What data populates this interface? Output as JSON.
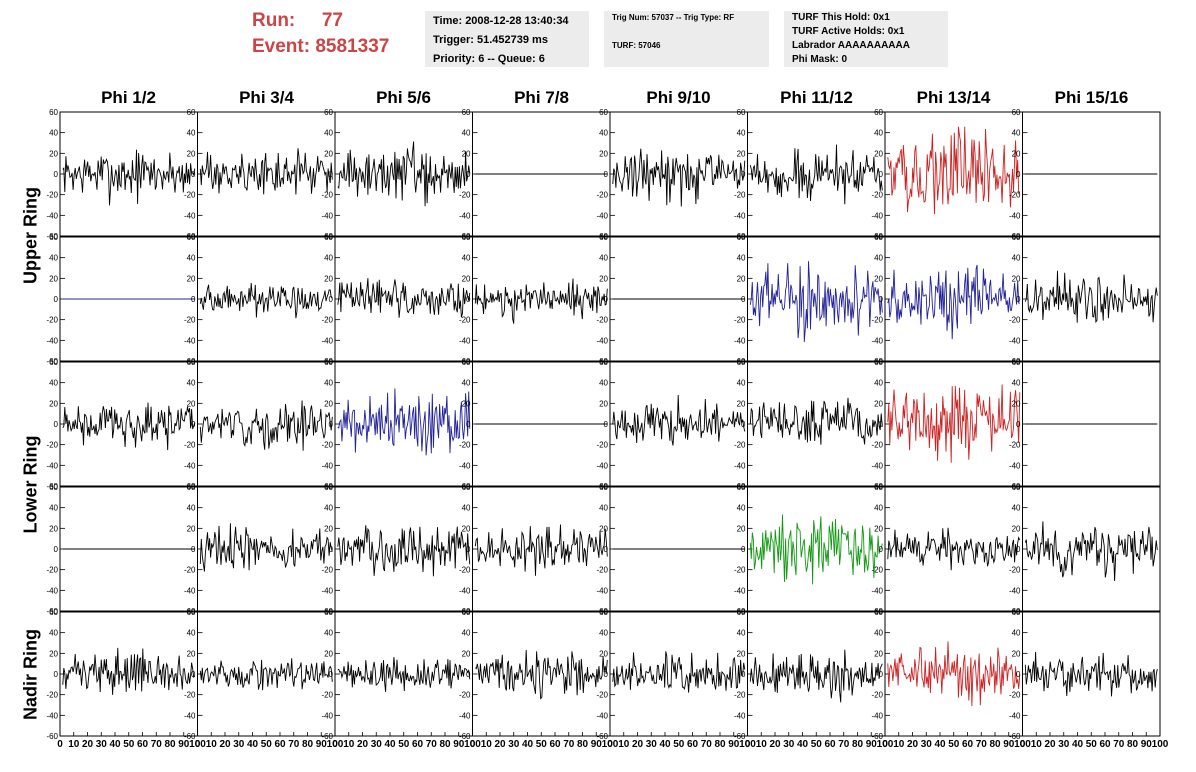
{
  "header": {
    "run_label": "Run:",
    "run_value": "77",
    "event_label": "Event:",
    "event_value": "8581337"
  },
  "info_box_1": {
    "time": "Time: 2008-12-28 13:40:34",
    "trigger": "Trigger: 51.452739 ms",
    "priority": "Priority: 6 -- Queue: 6"
  },
  "info_box_2": {
    "trig": "Trig Num: 57037 -- Trig Type: RF",
    "turf": "TURF: 57046"
  },
  "info_box_3": {
    "this_hold": "TURF This Hold: 0x1",
    "active_holds": "TURF Active Holds: 0x1",
    "labrador": "Labrador AAAAAAAAAA",
    "phi_mask": "Phi Mask: 0"
  },
  "columns": [
    "Phi 1/2",
    "Phi 3/4",
    "Phi 5/6",
    "Phi 7/8",
    "Phi 9/10",
    "Phi 11/12",
    "Phi 13/14",
    "Phi 15/16"
  ],
  "rings": [
    "Upper Ring",
    "Lower Ring",
    "Nadir Ring"
  ],
  "colors": {
    "black": "#000000",
    "red": "#cc2222",
    "blue": "#22229a",
    "green": "#119911"
  },
  "chart_data": {
    "type": "line",
    "x_range": [
      0,
      100
    ],
    "x_ticks": [
      0,
      10,
      20,
      30,
      40,
      50,
      60,
      70,
      80,
      90,
      100
    ],
    "y_range": [
      -60,
      60
    ],
    "y_ticks": [
      -60,
      -40,
      -20,
      0,
      20,
      40,
      60
    ],
    "grid": false,
    "panels": [
      [
        {
          "color": "black",
          "amp": 14
        },
        {
          "color": "black",
          "amp": 13
        },
        {
          "color": "black",
          "amp": 16
        },
        {
          "color": "black",
          "amp": 0
        },
        {
          "color": "black",
          "amp": 15
        },
        {
          "color": "black",
          "amp": 14
        },
        {
          "color": "red",
          "amp": 24
        },
        {
          "color": "black",
          "amp": 0
        }
      ],
      [
        {
          "color": "blue",
          "amp": 0
        },
        {
          "color": "black",
          "amp": 9
        },
        {
          "color": "black",
          "amp": 12
        },
        {
          "color": "black",
          "amp": 11
        },
        {
          "color": "black",
          "amp": 0
        },
        {
          "color": "blue",
          "amp": 20
        },
        {
          "color": "blue",
          "amp": 18
        },
        {
          "color": "black",
          "amp": 16
        }
      ],
      [
        {
          "color": "black",
          "amp": 13
        },
        {
          "color": "black",
          "amp": 13
        },
        {
          "color": "blue",
          "amp": 19
        },
        {
          "color": "black",
          "amp": 0
        },
        {
          "color": "black",
          "amp": 12
        },
        {
          "color": "black",
          "amp": 15
        },
        {
          "color": "red",
          "amp": 21
        },
        {
          "color": "black",
          "amp": 0
        }
      ],
      [
        {
          "color": "black",
          "amp": 0
        },
        {
          "color": "black",
          "amp": 13
        },
        {
          "color": "black",
          "amp": 15
        },
        {
          "color": "black",
          "amp": 13
        },
        {
          "color": "black",
          "amp": 0
        },
        {
          "color": "green",
          "amp": 18
        },
        {
          "color": "black",
          "amp": 12
        },
        {
          "color": "black",
          "amp": 14
        }
      ],
      [
        {
          "color": "black",
          "amp": 12
        },
        {
          "color": "black",
          "amp": 8
        },
        {
          "color": "black",
          "amp": 10
        },
        {
          "color": "black",
          "amp": 12
        },
        {
          "color": "black",
          "amp": 12
        },
        {
          "color": "black",
          "amp": 13
        },
        {
          "color": "red",
          "amp": 15
        },
        {
          "color": "black",
          "amp": 12
        }
      ]
    ]
  }
}
